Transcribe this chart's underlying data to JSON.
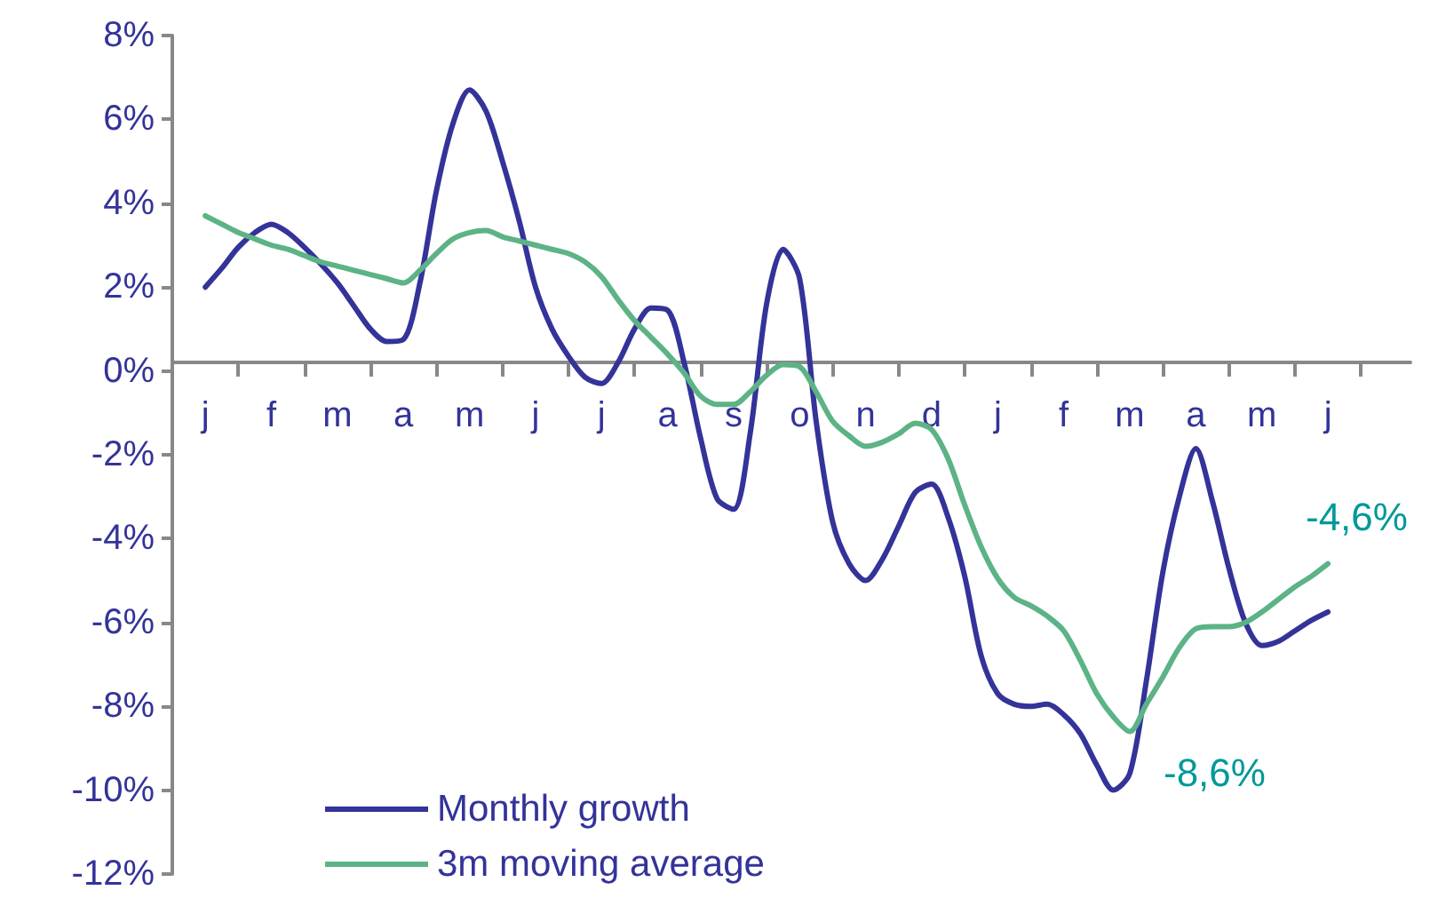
{
  "chart_data": {
    "type": "line",
    "categories": [
      null,
      null,
      "j",
      null,
      null,
      null,
      "f",
      null,
      null,
      null,
      "m",
      null,
      null,
      null,
      "a",
      null,
      null,
      null,
      "m",
      null,
      null,
      null,
      "j",
      null,
      null,
      null,
      "j",
      null,
      null,
      null,
      "a",
      null,
      null,
      null,
      "s",
      null,
      null,
      null,
      "o",
      null,
      null,
      null,
      "n",
      null,
      null,
      null,
      "d",
      null,
      null,
      null,
      "j",
      null,
      null,
      null,
      "f",
      null,
      null,
      null,
      "m",
      null,
      null,
      null,
      "a",
      null,
      null,
      null,
      "m",
      null,
      null,
      null,
      "j",
      null,
      null,
      null,
      null,
      null
    ],
    "ylim": [
      -12,
      8
    ],
    "yticks": [
      {
        "value": -12,
        "label": "-12%"
      },
      {
        "value": -10,
        "label": "-10%"
      },
      {
        "value": -8,
        "label": "-8%"
      },
      {
        "value": -6,
        "label": "-6%"
      },
      {
        "value": -4,
        "label": "-4%"
      },
      {
        "value": -2,
        "label": "-2%"
      },
      {
        "value": 0,
        "label": "0%"
      },
      {
        "value": 2,
        "label": "2%"
      },
      {
        "value": 4,
        "label": "4%"
      },
      {
        "value": 6,
        "label": "6%"
      },
      {
        "value": 8,
        "label": "8%"
      }
    ],
    "grid": false,
    "legend": "bottom left",
    "marker": "none",
    "line_style": "solid",
    "series": [
      {
        "name": "Monthly growth",
        "color": "#333399",
        "values": [
          null,
          null,
          2.0,
          2.45,
          2.95,
          3.3,
          3.5,
          3.3,
          2.95,
          2.55,
          2.1,
          1.55,
          1.0,
          0.7,
          0.75,
          2.1,
          4.3,
          5.9,
          6.7,
          6.2,
          5.0,
          3.6,
          2.0,
          1.0,
          0.35,
          -0.15,
          -0.3,
          0.2,
          1.0,
          1.5,
          1.45,
          0.2,
          -1.6,
          -3.05,
          -3.3,
          -1.5,
          1.6,
          2.9,
          2.2,
          -1.2,
          -3.6,
          -4.6,
          -5.0,
          -4.5,
          -3.7,
          -2.9,
          -2.7,
          -3.5,
          -4.9,
          -6.8,
          -7.7,
          -7.95,
          -8.0,
          -7.95,
          -8.2,
          -8.65,
          -9.4,
          -10.0,
          -9.6,
          -7.4,
          -4.8,
          -3.0,
          -1.85,
          -3.1,
          -4.7,
          -6.0,
          -6.55,
          -6.45,
          -6.2,
          -5.95,
          -5.75,
          null,
          null,
          null,
          null,
          null
        ]
      },
      {
        "name": "3m moving average",
        "color": "#5cb386",
        "values": [
          null,
          null,
          3.7,
          3.5,
          3.3,
          3.15,
          3.0,
          2.9,
          2.75,
          2.6,
          2.5,
          2.4,
          2.3,
          2.2,
          2.1,
          2.4,
          2.8,
          3.15,
          3.3,
          3.35,
          3.2,
          3.1,
          3.0,
          2.9,
          2.8,
          2.6,
          2.25,
          1.7,
          1.2,
          0.8,
          0.4,
          -0.05,
          -0.6,
          -0.8,
          -0.8,
          -0.5,
          -0.1,
          0.15,
          0.1,
          -0.5,
          -1.2,
          -1.55,
          -1.8,
          -1.7,
          -1.5,
          -1.25,
          -1.4,
          -2.1,
          -3.2,
          -4.2,
          -4.95,
          -5.4,
          -5.6,
          -5.85,
          -6.2,
          -6.9,
          -7.7,
          -8.25,
          -8.6,
          -7.95,
          -7.3,
          -6.6,
          -6.15,
          -6.1,
          -6.1,
          -6.0,
          -5.75,
          -5.45,
          -5.15,
          -4.9,
          -4.6,
          null,
          null,
          null,
          null,
          null
        ]
      }
    ],
    "annotations": [
      "-8,6%",
      "-4,6%"
    ]
  }
}
